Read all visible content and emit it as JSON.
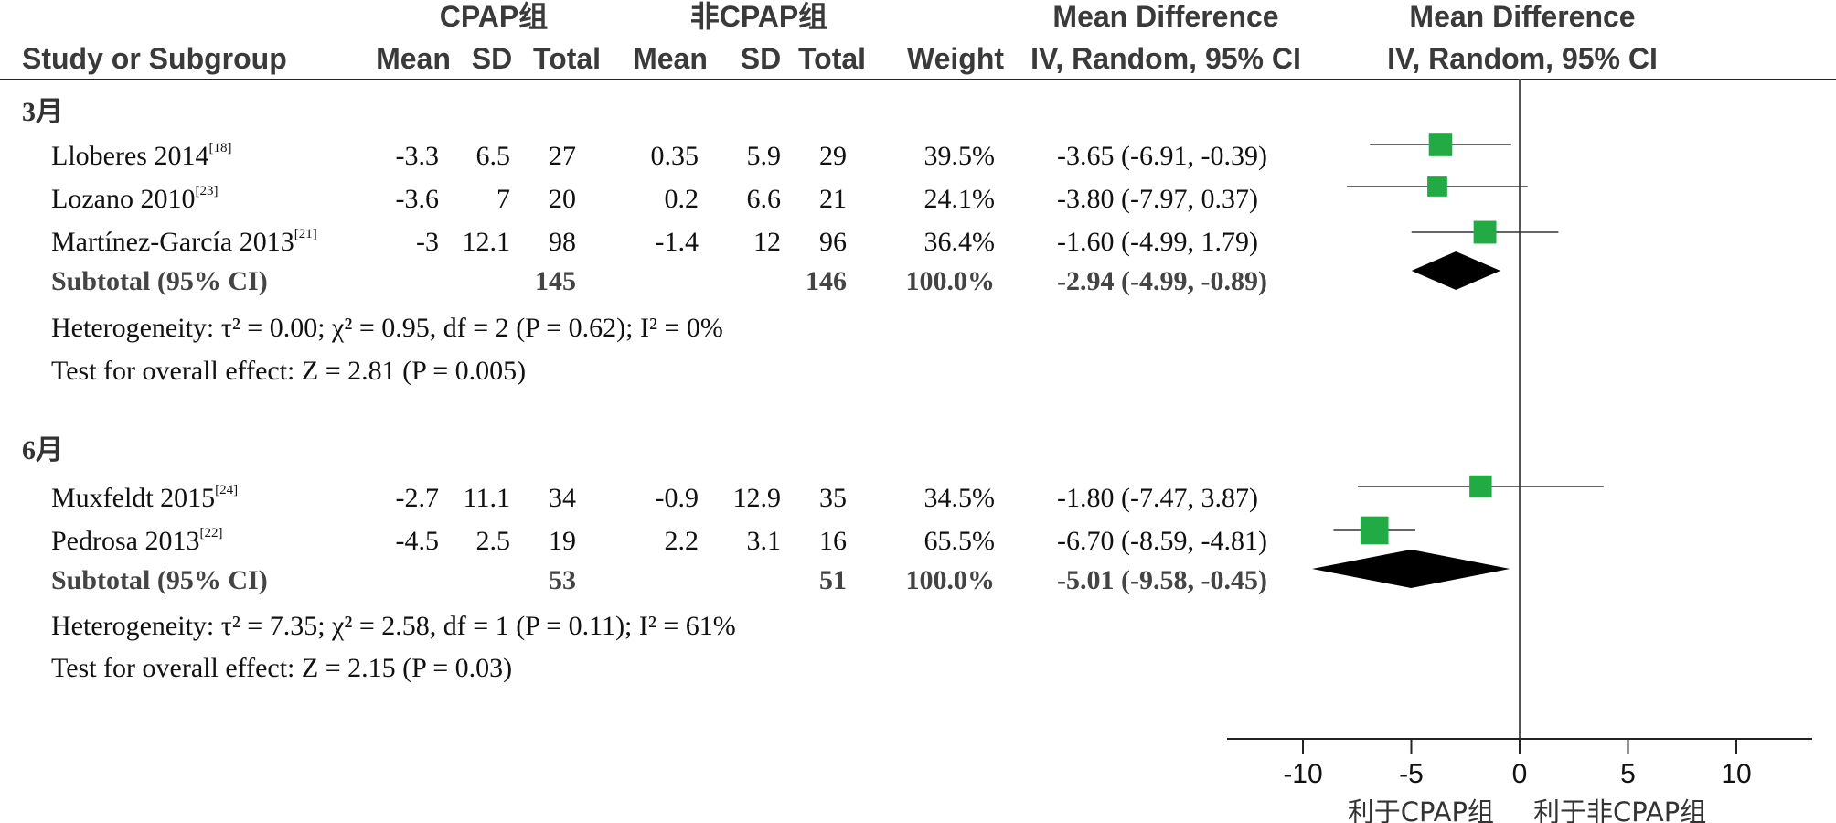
{
  "headers": {
    "group1": "CPAP组",
    "group2": "非CPAP组",
    "effect_col": "Mean Difference",
    "plot_col": "Mean Difference",
    "study": "Study or Subgroup",
    "mean": "Mean",
    "sd": "SD",
    "total": "Total",
    "weight": "Weight",
    "effect_method": "IV, Random, 95% CI",
    "plot_method": "IV, Random, 95% CI"
  },
  "subgroups": [
    {
      "label": "3月",
      "studies": [
        {
          "name": "Lloberes 2014",
          "ref": "[18]",
          "m1": "-3.3",
          "sd1": "6.5",
          "n1": "27",
          "m2": "0.35",
          "sd2": "5.9",
          "n2": "29",
          "weight": "39.5%",
          "ci_text": "-3.65 (-6.91, -0.39)"
        },
        {
          "name": "Lozano 2010",
          "ref": "[23]",
          "m1": "-3.6",
          "sd1": "7",
          "n1": "20",
          "m2": "0.2",
          "sd2": "6.6",
          "n2": "21",
          "weight": "24.1%",
          "ci_text": "-3.80 (-7.97, 0.37)"
        },
        {
          "name": "Martínez-García 2013",
          "ref": "[21]",
          "m1": "-3",
          "sd1": "12.1",
          "n1": "98",
          "m2": "-1.4",
          "sd2": "12",
          "n2": "96",
          "weight": "36.4%",
          "ci_text": "-1.60 (-4.99, 1.79)"
        }
      ],
      "subtotal": {
        "label": "Subtotal (95% CI)",
        "n1": "145",
        "n2": "146",
        "weight": "100.0%",
        "ci_text": "-2.94 (-4.99, -0.89)"
      },
      "heterogeneity": "Heterogeneity: τ² = 0.00; χ² = 0.95, df = 2 (P = 0.62); I² = 0%",
      "overall": "Test for overall effect: Z = 2.81 (P = 0.005)"
    },
    {
      "label": "6月",
      "studies": [
        {
          "name": "Muxfeldt 2015",
          "ref": "[24]",
          "m1": "-2.7",
          "sd1": "11.1",
          "n1": "34",
          "m2": "-0.9",
          "sd2": "12.9",
          "n2": "35",
          "weight": "34.5%",
          "ci_text": "-1.80 (-7.47, 3.87)"
        },
        {
          "name": "Pedrosa 2013",
          "ref": "[22]",
          "m1": "-4.5",
          "sd1": "2.5",
          "n1": "19",
          "m2": "2.2",
          "sd2": "3.1",
          "n2": "16",
          "weight": "65.5%",
          "ci_text": "-6.70 (-8.59, -4.81)"
        }
      ],
      "subtotal": {
        "label": "Subtotal (95% CI)",
        "n1": "53",
        "n2": "51",
        "weight": "100.0%",
        "ci_text": "-5.01 (-9.58, -0.45)"
      },
      "heterogeneity": "Heterogeneity: τ² = 7.35; χ² = 2.58, df = 1 (P = 0.11); I² = 61%",
      "overall": "Test for overall effect: Z = 2.15 (P = 0.03)"
    }
  ],
  "chart_data": {
    "type": "forest",
    "xlim": [
      -13.5,
      13.5
    ],
    "ticks": [
      -10,
      -5,
      0,
      5,
      10
    ],
    "tick_labels": [
      "-10",
      "-5",
      "0",
      "5",
      "10"
    ],
    "favors_left": "利于CPAP组",
    "favors_right": "利于非CPAP组",
    "marker_color": "#22aa44",
    "diamond_color": "#000000",
    "studies": [
      {
        "name": "Lloberes 2014",
        "md": -3.65,
        "lo": -6.91,
        "hi": -0.39,
        "weight": 39.5
      },
      {
        "name": "Lozano 2010",
        "md": -3.8,
        "lo": -7.97,
        "hi": 0.37,
        "weight": 24.1
      },
      {
        "name": "Martínez-García 2013",
        "md": -1.6,
        "lo": -4.99,
        "hi": 1.79,
        "weight": 36.4
      },
      {
        "name": "Muxfeldt 2015",
        "md": -1.8,
        "lo": -7.47,
        "hi": 3.87,
        "weight": 34.5
      },
      {
        "name": "Pedrosa 2013",
        "md": -6.7,
        "lo": -8.59,
        "hi": -4.81,
        "weight": 65.5
      }
    ],
    "subtotals": [
      {
        "name": "3月",
        "md": -2.94,
        "lo": -4.99,
        "hi": -0.89
      },
      {
        "name": "6月",
        "md": -5.01,
        "lo": -9.58,
        "hi": -0.45
      }
    ]
  }
}
